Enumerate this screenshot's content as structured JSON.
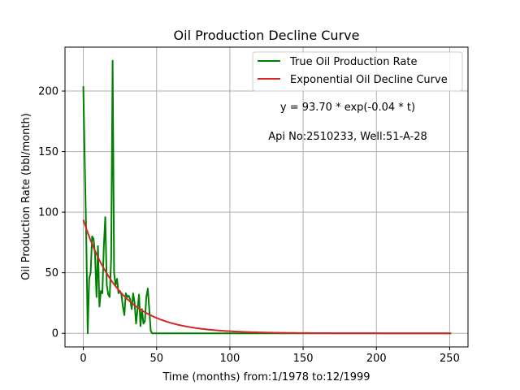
{
  "chart_data": {
    "type": "line",
    "title": "Oil Production Decline Curve",
    "xlabel": "Time (months) from:1/1978 to:12/1999",
    "ylabel": "Oil Production Rate (bbl/month)",
    "xlim": [
      -12.5,
      262.5
    ],
    "ylim": [
      -11.25,
      236.25
    ],
    "xticks": [
      0,
      50,
      100,
      150,
      200,
      250
    ],
    "yticks": [
      0,
      50,
      100,
      150,
      200
    ],
    "xtick_labels": [
      "0",
      "50",
      "100",
      "150",
      "200",
      "250"
    ],
    "ytick_labels": [
      "0",
      "50",
      "100",
      "150",
      "200"
    ],
    "grid": true,
    "legend_position": "top-right",
    "annotations": [
      "y = 93.70 * exp(-0.04 * t)",
      "Api No:2510233, Well:51-A-28"
    ],
    "series": [
      {
        "name": "True Oil Production Rate",
        "color": "#008000",
        "x": [
          0,
          1,
          2,
          3,
          4,
          5,
          6,
          7,
          8,
          9,
          10,
          11,
          12,
          13,
          14,
          15,
          16,
          17,
          18,
          19,
          20,
          21,
          22,
          23,
          24,
          25,
          26,
          27,
          28,
          29,
          30,
          31,
          32,
          33,
          34,
          35,
          36,
          37,
          38,
          39,
          40,
          41,
          42,
          43,
          44,
          45,
          46,
          47,
          48,
          49,
          50,
          60,
          100,
          150,
          200,
          251
        ],
        "y": [
          204,
          140,
          80,
          0,
          45,
          50,
          80,
          78,
          65,
          30,
          72,
          22,
          35,
          33,
          72,
          96,
          40,
          32,
          30,
          62,
          225,
          50,
          40,
          45,
          33,
          35,
          32,
          22,
          15,
          33,
          30,
          31,
          28,
          20,
          33,
          25,
          8,
          20,
          32,
          6,
          20,
          8,
          10,
          30,
          37,
          20,
          2,
          0,
          0,
          0,
          0,
          0,
          0,
          0,
          0,
          0
        ]
      },
      {
        "name": "Exponential Oil Decline Curve",
        "color": "#d62728",
        "type": "fit",
        "a": 93.7,
        "b": 0.04,
        "x_range": [
          0,
          251
        ]
      }
    ]
  }
}
